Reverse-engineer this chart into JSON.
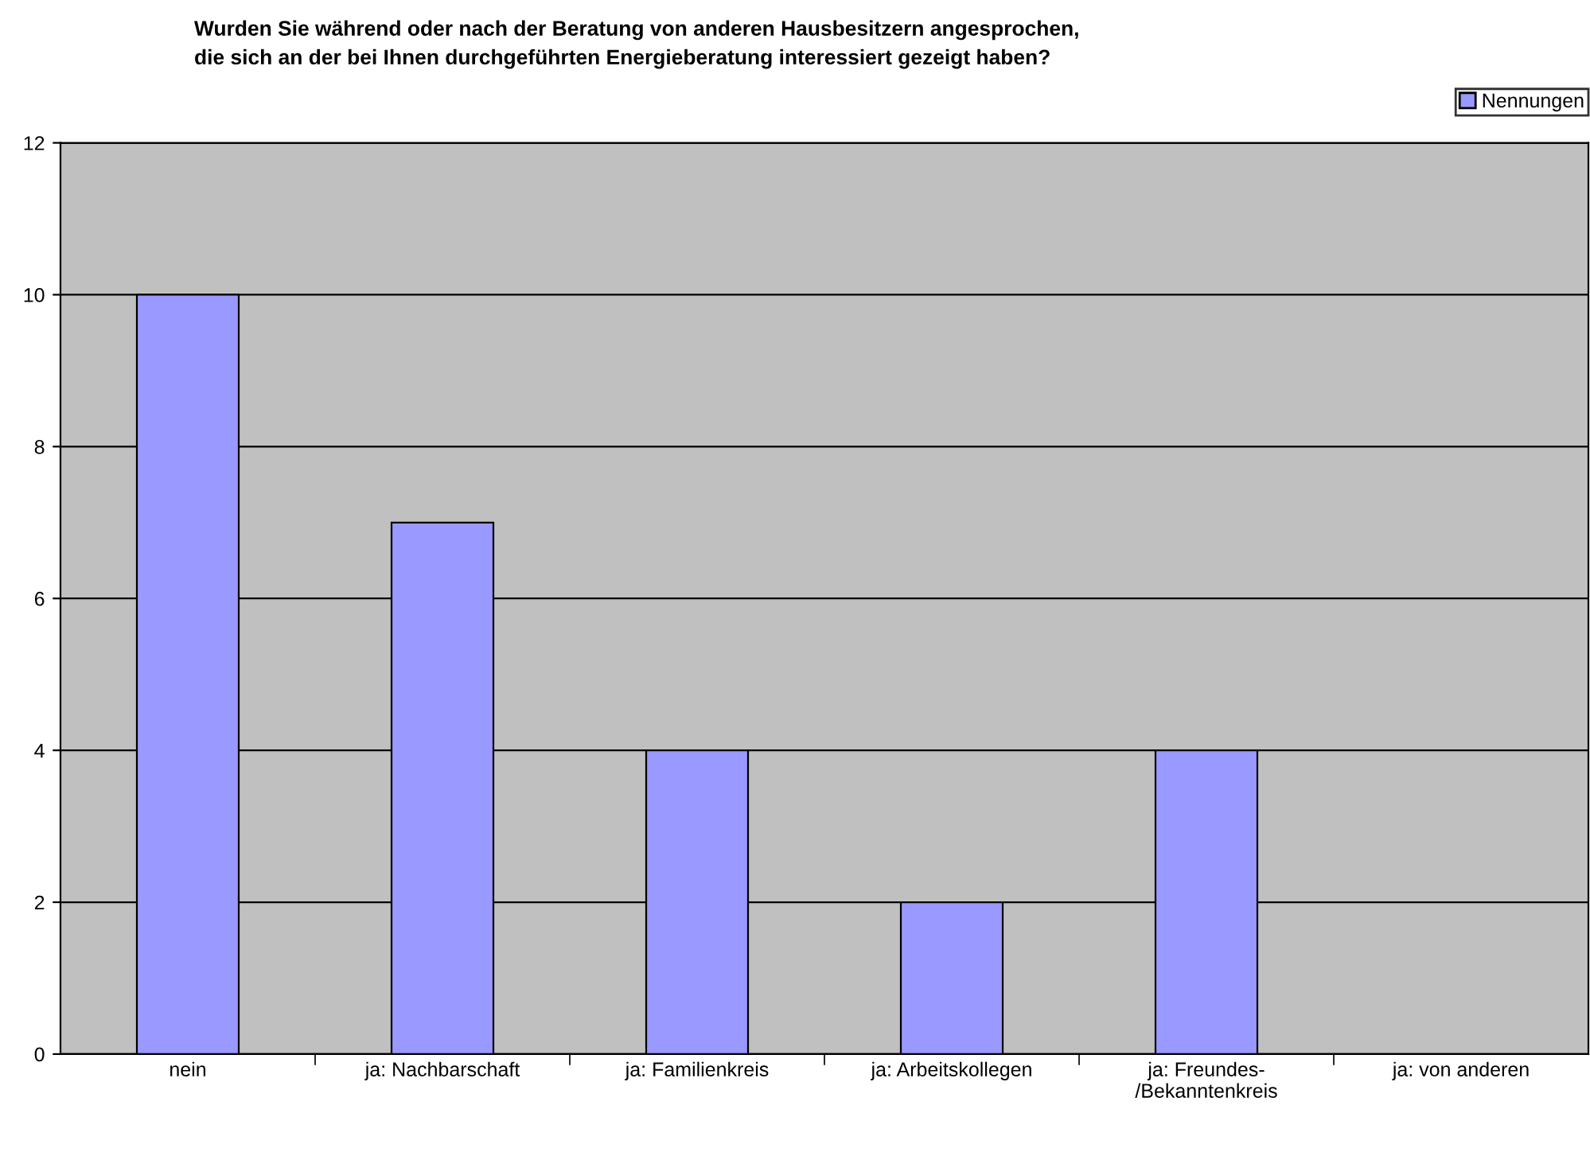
{
  "chart_data": {
    "type": "bar",
    "title": "Wurden Sie während oder nach der Beratung von anderen Hausbesitzern angesprochen,\ndie sich an der bei Ihnen durchgeführten Energieberatung interessiert gezeigt haben?",
    "categories": [
      "nein",
      "ja: Nachbarschaft",
      "ja: Familienkreis",
      "ja: Arbeitskollegen",
      "ja: Freundes-\n/Bekanntenkreis",
      "ja: von anderen"
    ],
    "series": [
      {
        "name": "Nennungen",
        "color": "#9999ff",
        "values": [
          10,
          7,
          4,
          2,
          4,
          0
        ]
      }
    ],
    "ylim": [
      0,
      12
    ],
    "yticks": [
      0,
      2,
      4,
      6,
      8,
      10,
      12
    ],
    "grid": "y",
    "legend": "top right"
  }
}
